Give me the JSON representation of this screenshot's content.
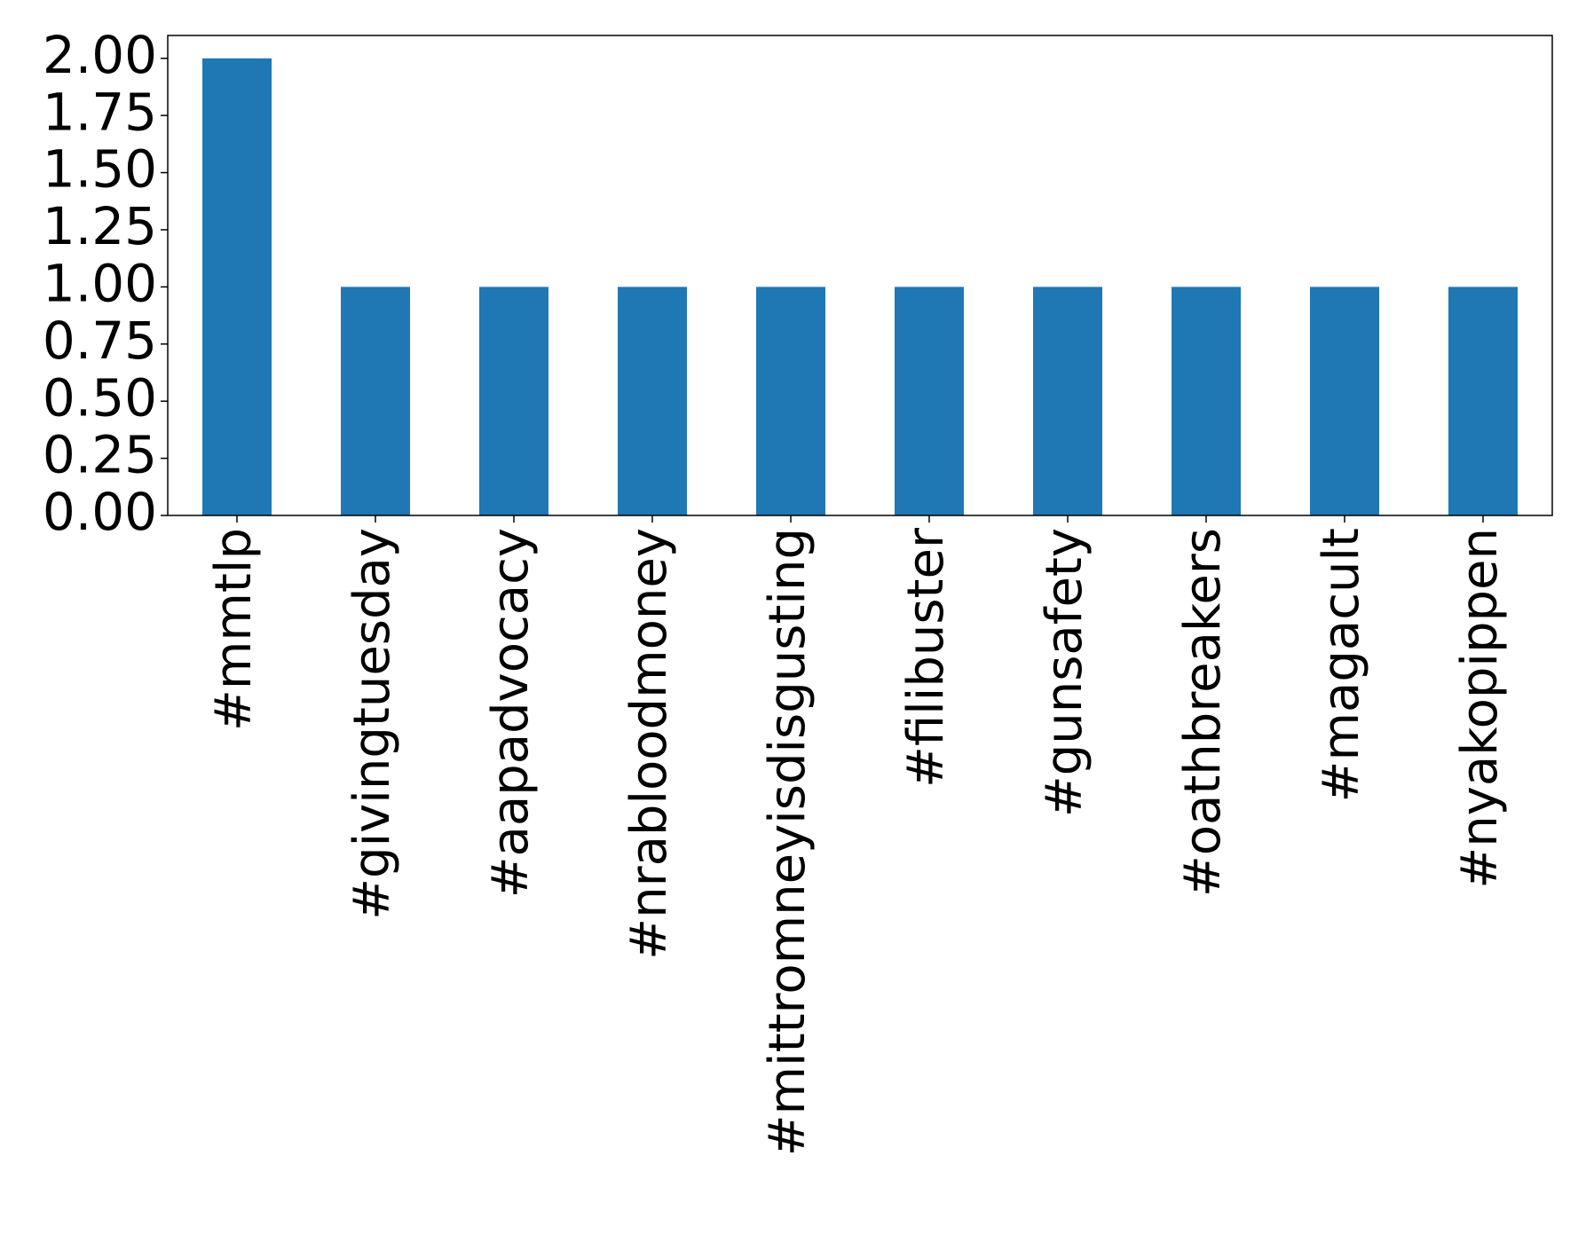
{
  "chart_data": {
    "type": "bar",
    "categories": [
      "#mmtlp",
      "#givingtuesday",
      "#aapadvocacy",
      "#nrabloodmoney",
      "#mittromneyisdisgusting",
      "#filibuster",
      "#gunsafety",
      "#oathbreakers",
      "#magacult",
      "#nyakopippen"
    ],
    "values": [
      2,
      1,
      1,
      1,
      1,
      1,
      1,
      1,
      1,
      1
    ],
    "color": "#1f77b4",
    "ylim": [
      0,
      2.1
    ],
    "yticks": [
      {
        "value": 0,
        "label": "0.00"
      },
      {
        "value": 0.25,
        "label": "0.25"
      },
      {
        "value": 0.5,
        "label": "0.50"
      },
      {
        "value": 0.75,
        "label": "0.75"
      },
      {
        "value": 1,
        "label": "1.00"
      },
      {
        "value": 1.25,
        "label": "1.25"
      },
      {
        "value": 1.5,
        "label": "1.50"
      },
      {
        "value": 1.75,
        "label": "1.75"
      },
      {
        "value": 2,
        "label": "2.00"
      }
    ],
    "grid": false
  }
}
